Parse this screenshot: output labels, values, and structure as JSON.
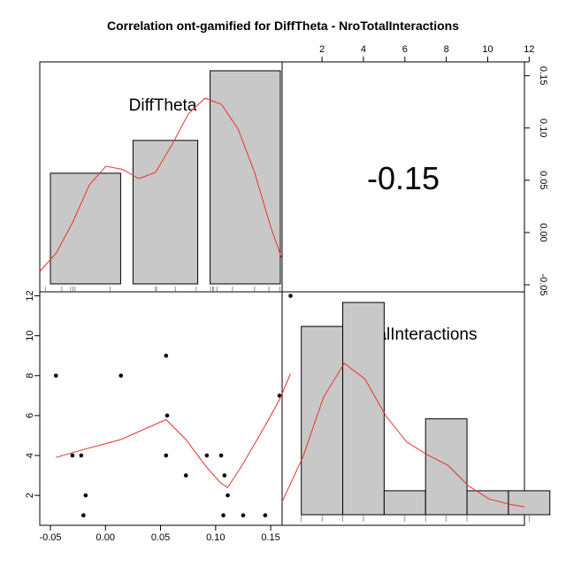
{
  "chart_data": {
    "type": "scatter",
    "title": "Correlation ont-gamified for DiffTheta - NroTotalInteractions",
    "variables": [
      "DiffTheta",
      "NroTotalInteractions"
    ],
    "correlation_label": "-0.15",
    "diff_theta_axis": {
      "ticks": [
        -0.05,
        0.0,
        0.05,
        0.1,
        0.15
      ],
      "labels": [
        "-0.05",
        "0.00",
        "0.05",
        "0.10",
        "0.15"
      ],
      "range": [
        -0.05,
        0.17
      ]
    },
    "interactions_axis": {
      "ticks": [
        2,
        4,
        6,
        8,
        10,
        12
      ],
      "labels": [
        "2",
        "4",
        "6",
        "8",
        "10",
        "12"
      ],
      "range": [
        0.5,
        12.2
      ]
    },
    "scatter_points": [
      {
        "x": -0.045,
        "y": 8
      },
      {
        "x": -0.03,
        "y": 4
      },
      {
        "x": -0.022,
        "y": 4
      },
      {
        "x": -0.02,
        "y": 1
      },
      {
        "x": -0.018,
        "y": 2
      },
      {
        "x": 0.014,
        "y": 8
      },
      {
        "x": 0.055,
        "y": 9
      },
      {
        "x": 0.055,
        "y": 4
      },
      {
        "x": 0.056,
        "y": 6
      },
      {
        "x": 0.073,
        "y": 3
      },
      {
        "x": 0.092,
        "y": 4
      },
      {
        "x": 0.105,
        "y": 4
      },
      {
        "x": 0.107,
        "y": 1
      },
      {
        "x": 0.108,
        "y": 3
      },
      {
        "x": 0.111,
        "y": 2
      },
      {
        "x": 0.125,
        "y": 1
      },
      {
        "x": 0.145,
        "y": 1
      },
      {
        "x": 0.158,
        "y": 7
      },
      {
        "x": 0.168,
        "y": 12
      }
    ],
    "loess_line": [
      {
        "x": -0.045,
        "y": 3.9
      },
      {
        "x": -0.02,
        "y": 4.3
      },
      {
        "x": 0.014,
        "y": 4.8
      },
      {
        "x": 0.055,
        "y": 5.8
      },
      {
        "x": 0.073,
        "y": 4.8
      },
      {
        "x": 0.092,
        "y": 3.4
      },
      {
        "x": 0.105,
        "y": 2.6
      },
      {
        "x": 0.111,
        "y": 2.4
      },
      {
        "x": 0.125,
        "y": 3.6
      },
      {
        "x": 0.145,
        "y": 5.5
      },
      {
        "x": 0.158,
        "y": 6.8
      },
      {
        "x": 0.168,
        "y": 8.1
      }
    ],
    "diff_theta_hist": {
      "bins": [
        [
          -0.05,
          0.025
        ],
        [
          0.025,
          0.095
        ],
        [
          0.095,
          0.17
        ]
      ],
      "values": [
        0.27,
        0.35,
        0.52
      ]
    },
    "interactions_hist": {
      "bins": [
        [
          1,
          3
        ],
        [
          3,
          5
        ],
        [
          5,
          7
        ],
        [
          7,
          9
        ],
        [
          9,
          11
        ],
        [
          11,
          13
        ]
      ],
      "values": [
        0.55,
        0.62,
        0.07,
        0.28,
        0.07,
        0.07
      ]
    },
    "diff_theta_rug": [
      -0.045,
      -0.03,
      -0.022,
      -0.02,
      -0.018,
      0.014,
      0.055,
      0.056,
      0.073,
      0.092,
      0.105,
      0.107,
      0.108,
      0.111,
      0.125,
      0.145,
      0.158,
      0.168
    ],
    "interactions_rug": [
      1,
      2,
      3,
      4,
      6,
      7,
      8,
      9,
      12
    ],
    "diff_theta_density": [
      {
        "x": -0.05,
        "y": 0.04
      },
      {
        "x": -0.035,
        "y": 0.1
      },
      {
        "x": -0.02,
        "y": 0.2
      },
      {
        "x": -0.005,
        "y": 0.32
      },
      {
        "x": 0.01,
        "y": 0.38
      },
      {
        "x": 0.025,
        "y": 0.37
      },
      {
        "x": 0.04,
        "y": 0.34
      },
      {
        "x": 0.055,
        "y": 0.36
      },
      {
        "x": 0.07,
        "y": 0.45
      },
      {
        "x": 0.085,
        "y": 0.55
      },
      {
        "x": 0.1,
        "y": 0.6
      },
      {
        "x": 0.115,
        "y": 0.58
      },
      {
        "x": 0.13,
        "y": 0.5
      },
      {
        "x": 0.145,
        "y": 0.36
      },
      {
        "x": 0.16,
        "y": 0.18
      },
      {
        "x": 0.17,
        "y": 0.08
      }
    ],
    "interactions_density": [
      {
        "x": 0.5,
        "y": 0.05
      },
      {
        "x": 1.5,
        "y": 0.22
      },
      {
        "x": 2.5,
        "y": 0.45
      },
      {
        "x": 3.5,
        "y": 0.58
      },
      {
        "x": 4.5,
        "y": 0.52
      },
      {
        "x": 5.5,
        "y": 0.38
      },
      {
        "x": 6.5,
        "y": 0.28
      },
      {
        "x": 7.5,
        "y": 0.23
      },
      {
        "x": 8.5,
        "y": 0.19
      },
      {
        "x": 9.5,
        "y": 0.11
      },
      {
        "x": 10.5,
        "y": 0.06
      },
      {
        "x": 11.5,
        "y": 0.04
      },
      {
        "x": 12.2,
        "y": 0.03
      }
    ],
    "colors": {
      "bar_fill": "#c8c8c8",
      "line": "#e8312c",
      "point": "#000000"
    },
    "grid": false,
    "legend": "none"
  }
}
